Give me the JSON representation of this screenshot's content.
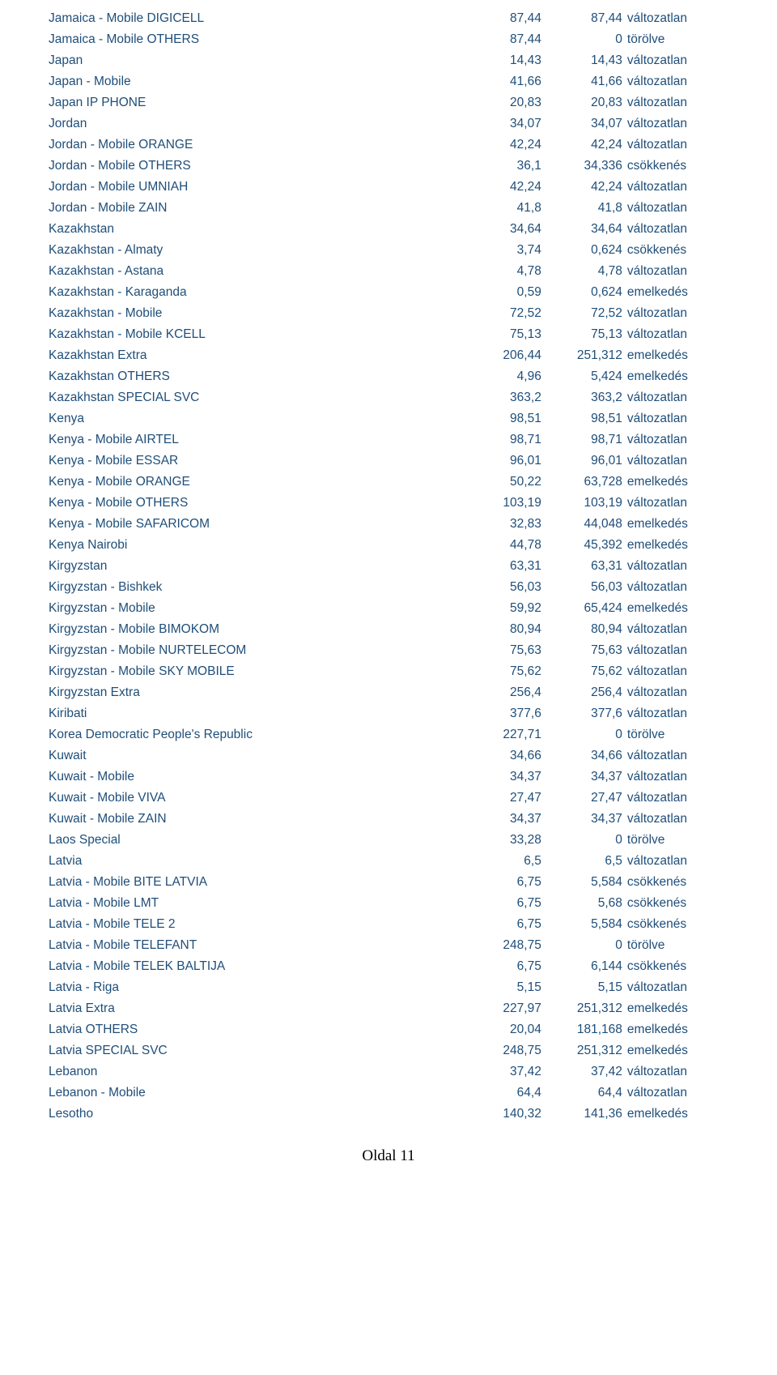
{
  "colors": {
    "text": "#1f4e79",
    "footer": "#000000",
    "background": "#ffffff"
  },
  "fonts": {
    "body_family": "Verdana",
    "body_size_pt": 11,
    "footer_family": "Times New Roman",
    "footer_size_pt": 12
  },
  "columns": {
    "destination_width_pct": 58,
    "value1_width_pct": 15,
    "value2_width_pct": 12,
    "status_width_pct": 15,
    "value1_align": "right",
    "value2_align": "right",
    "status_align": "left"
  },
  "footer": "Oldal 11",
  "rows": [
    {
      "dest": "Jamaica - Mobile DIGICELL",
      "v1": "87,44",
      "v2": "87,44",
      "status": "változatlan"
    },
    {
      "dest": "Jamaica - Mobile OTHERS",
      "v1": "87,44",
      "v2": "0",
      "status": "törölve"
    },
    {
      "dest": "Japan",
      "v1": "14,43",
      "v2": "14,43",
      "status": "változatlan"
    },
    {
      "dest": "Japan - Mobile",
      "v1": "41,66",
      "v2": "41,66",
      "status": "változatlan"
    },
    {
      "dest": "Japan IP PHONE",
      "v1": "20,83",
      "v2": "20,83",
      "status": "változatlan"
    },
    {
      "dest": "Jordan",
      "v1": "34,07",
      "v2": "34,07",
      "status": "változatlan"
    },
    {
      "dest": "Jordan - Mobile ORANGE",
      "v1": "42,24",
      "v2": "42,24",
      "status": "változatlan"
    },
    {
      "dest": "Jordan - Mobile OTHERS",
      "v1": "36,1",
      "v2": "34,336",
      "status": "csökkenés"
    },
    {
      "dest": "Jordan - Mobile UMNIAH",
      "v1": "42,24",
      "v2": "42,24",
      "status": "változatlan"
    },
    {
      "dest": "Jordan - Mobile ZAIN",
      "v1": "41,8",
      "v2": "41,8",
      "status": "változatlan"
    },
    {
      "dest": "Kazakhstan",
      "v1": "34,64",
      "v2": "34,64",
      "status": "változatlan"
    },
    {
      "dest": "Kazakhstan - Almaty",
      "v1": "3,74",
      "v2": "0,624",
      "status": "csökkenés"
    },
    {
      "dest": "Kazakhstan - Astana",
      "v1": "4,78",
      "v2": "4,78",
      "status": "változatlan"
    },
    {
      "dest": "Kazakhstan - Karaganda",
      "v1": "0,59",
      "v2": "0,624",
      "status": "emelkedés"
    },
    {
      "dest": "Kazakhstan - Mobile",
      "v1": "72,52",
      "v2": "72,52",
      "status": "változatlan"
    },
    {
      "dest": "Kazakhstan - Mobile KCELL",
      "v1": "75,13",
      "v2": "75,13",
      "status": "változatlan"
    },
    {
      "dest": "Kazakhstan Extra",
      "v1": "206,44",
      "v2": "251,312",
      "status": "emelkedés"
    },
    {
      "dest": "Kazakhstan OTHERS",
      "v1": "4,96",
      "v2": "5,424",
      "status": "emelkedés"
    },
    {
      "dest": "Kazakhstan SPECIAL SVC",
      "v1": "363,2",
      "v2": "363,2",
      "status": "változatlan"
    },
    {
      "dest": "Kenya",
      "v1": "98,51",
      "v2": "98,51",
      "status": "változatlan"
    },
    {
      "dest": "Kenya - Mobile AIRTEL",
      "v1": "98,71",
      "v2": "98,71",
      "status": "változatlan"
    },
    {
      "dest": "Kenya - Mobile ESSAR",
      "v1": "96,01",
      "v2": "96,01",
      "status": "változatlan"
    },
    {
      "dest": "Kenya - Mobile ORANGE",
      "v1": "50,22",
      "v2": "63,728",
      "status": "emelkedés"
    },
    {
      "dest": "Kenya - Mobile OTHERS",
      "v1": "103,19",
      "v2": "103,19",
      "status": "változatlan"
    },
    {
      "dest": "Kenya - Mobile SAFARICOM",
      "v1": "32,83",
      "v2": "44,048",
      "status": "emelkedés"
    },
    {
      "dest": "Kenya Nairobi",
      "v1": "44,78",
      "v2": "45,392",
      "status": "emelkedés"
    },
    {
      "dest": "Kirgyzstan",
      "v1": "63,31",
      "v2": "63,31",
      "status": "változatlan"
    },
    {
      "dest": "Kirgyzstan - Bishkek",
      "v1": "56,03",
      "v2": "56,03",
      "status": "változatlan"
    },
    {
      "dest": "Kirgyzstan - Mobile",
      "v1": "59,92",
      "v2": "65,424",
      "status": "emelkedés"
    },
    {
      "dest": "Kirgyzstan - Mobile BIMOKOM",
      "v1": "80,94",
      "v2": "80,94",
      "status": "változatlan"
    },
    {
      "dest": "Kirgyzstan - Mobile NURTELECOM",
      "v1": "75,63",
      "v2": "75,63",
      "status": "változatlan"
    },
    {
      "dest": "Kirgyzstan - Mobile SKY MOBILE",
      "v1": "75,62",
      "v2": "75,62",
      "status": "változatlan"
    },
    {
      "dest": "Kirgyzstan Extra",
      "v1": "256,4",
      "v2": "256,4",
      "status": "változatlan"
    },
    {
      "dest": "Kiribati",
      "v1": "377,6",
      "v2": "377,6",
      "status": "változatlan"
    },
    {
      "dest": "Korea Democratic People's Republic",
      "v1": "227,71",
      "v2": "0",
      "status": "törölve"
    },
    {
      "dest": "Kuwait",
      "v1": "34,66",
      "v2": "34,66",
      "status": "változatlan"
    },
    {
      "dest": "Kuwait - Mobile",
      "v1": "34,37",
      "v2": "34,37",
      "status": "változatlan"
    },
    {
      "dest": "Kuwait - Mobile VIVA",
      "v1": "27,47",
      "v2": "27,47",
      "status": "változatlan"
    },
    {
      "dest": "Kuwait - Mobile ZAIN",
      "v1": "34,37",
      "v2": "34,37",
      "status": "változatlan"
    },
    {
      "dest": "Laos Special",
      "v1": "33,28",
      "v2": "0",
      "status": "törölve"
    },
    {
      "dest": "Latvia",
      "v1": "6,5",
      "v2": "6,5",
      "status": "változatlan"
    },
    {
      "dest": "Latvia - Mobile BITE LATVIA",
      "v1": "6,75",
      "v2": "5,584",
      "status": "csökkenés"
    },
    {
      "dest": "Latvia - Mobile LMT",
      "v1": "6,75",
      "v2": "5,68",
      "status": "csökkenés"
    },
    {
      "dest": "Latvia - Mobile TELE 2",
      "v1": "6,75",
      "v2": "5,584",
      "status": "csökkenés"
    },
    {
      "dest": "Latvia - Mobile TELEFANT",
      "v1": "248,75",
      "v2": "0",
      "status": "törölve"
    },
    {
      "dest": "Latvia - Mobile TELEK BALTIJA",
      "v1": "6,75",
      "v2": "6,144",
      "status": "csökkenés"
    },
    {
      "dest": "Latvia - Riga",
      "v1": "5,15",
      "v2": "5,15",
      "status": "változatlan"
    },
    {
      "dest": "Latvia Extra",
      "v1": "227,97",
      "v2": "251,312",
      "status": "emelkedés"
    },
    {
      "dest": "Latvia OTHERS",
      "v1": "20,04",
      "v2": "181,168",
      "status": "emelkedés"
    },
    {
      "dest": "Latvia SPECIAL SVC",
      "v1": "248,75",
      "v2": "251,312",
      "status": "emelkedés"
    },
    {
      "dest": "Lebanon",
      "v1": "37,42",
      "v2": "37,42",
      "status": "változatlan"
    },
    {
      "dest": "Lebanon - Mobile",
      "v1": "64,4",
      "v2": "64,4",
      "status": "változatlan"
    },
    {
      "dest": "Lesotho",
      "v1": "140,32",
      "v2": "141,36",
      "status": "emelkedés"
    }
  ]
}
